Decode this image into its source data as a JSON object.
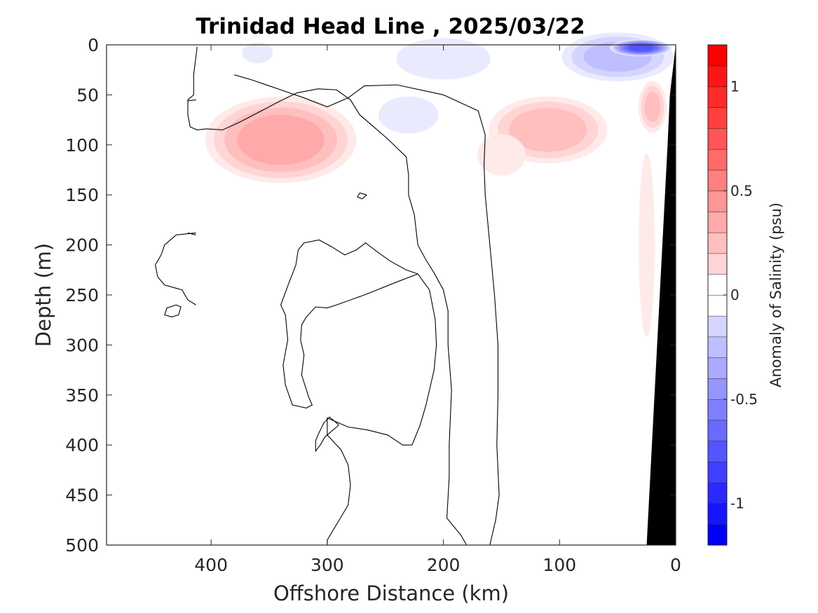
{
  "chart_data": {
    "type": "heatmap",
    "title": "Trinidad Head Line , 2025/03/22",
    "xlabel": "Offshore Distance (km)",
    "ylabel": "Depth (m)",
    "colorbar_label": "Anomaly of Salinity (psu)",
    "xlim": [
      490,
      0
    ],
    "ylim": [
      0,
      500
    ],
    "x_ticks": [
      {
        "value": 400,
        "label": "400"
      },
      {
        "value": 300,
        "label": "300"
      },
      {
        "value": 200,
        "label": "200"
      },
      {
        "value": 100,
        "label": "100"
      },
      {
        "value": 0,
        "label": "0"
      }
    ],
    "y_ticks": [
      {
        "value": 0,
        "label": "0"
      },
      {
        "value": 50,
        "label": "50"
      },
      {
        "value": 100,
        "label": "100"
      },
      {
        "value": 150,
        "label": "150"
      },
      {
        "value": 200,
        "label": "200"
      },
      {
        "value": 250,
        "label": "250"
      },
      {
        "value": 300,
        "label": "300"
      },
      {
        "value": 350,
        "label": "350"
      },
      {
        "value": 400,
        "label": "400"
      },
      {
        "value": 450,
        "label": "450"
      },
      {
        "value": 500,
        "label": "500"
      }
    ],
    "colorbar": {
      "range": [
        -1.2,
        1.2
      ],
      "step": 0.1,
      "colors": {
        "negative_max": "#0000ff",
        "zero": "#ffffff",
        "positive_max": "#ff0000"
      },
      "ticks": [
        {
          "value": 1,
          "label": "1"
        },
        {
          "value": 0.5,
          "label": "0.5"
        },
        {
          "value": 0,
          "label": "0"
        },
        {
          "value": -0.5,
          "label": "-0.5"
        },
        {
          "value": -1,
          "label": "-1"
        }
      ]
    },
    "blobs": [
      {
        "x": 340,
        "y": 95,
        "rx": 72,
        "ry": 48,
        "value": 0.45
      },
      {
        "x": 110,
        "y": 85,
        "rx": 58,
        "ry": 38,
        "value": 0.35
      },
      {
        "x": 150,
        "y": 110,
        "rx": 28,
        "ry": 28,
        "value": 0.12
      },
      {
        "x": 20,
        "y": 62,
        "rx": 14,
        "ry": 30,
        "value": 0.3
      },
      {
        "x": 25,
        "y": 200,
        "rx": 9,
        "ry": 120,
        "value": 0.14
      },
      {
        "x": 50,
        "y": 12,
        "rx": 55,
        "ry": 28,
        "value": -0.32
      },
      {
        "x": 30,
        "y": 3,
        "rx": 28,
        "ry": 9,
        "value": -0.85
      },
      {
        "x": 200,
        "y": 14,
        "rx": 55,
        "ry": 28,
        "value": -0.12
      },
      {
        "x": 230,
        "y": 70,
        "rx": 35,
        "ry": 25,
        "value": -0.12
      },
      {
        "x": 360,
        "y": 8,
        "rx": 18,
        "ry": 14,
        "value": -0.12
      }
    ],
    "zero_contours": [
      [
        [
          412,
          2
        ],
        [
          415,
          30
        ],
        [
          415,
          50
        ],
        [
          420,
          55
        ],
        [
          420,
          70
        ],
        [
          418,
          82
        ],
        [
          412,
          85
        ],
        [
          404,
          84
        ],
        [
          390,
          85
        ],
        [
          375,
          77
        ],
        [
          360,
          68
        ],
        [
          342,
          57
        ],
        [
          326,
          48
        ],
        [
          308,
          44
        ],
        [
          292,
          45
        ],
        [
          280,
          55
        ],
        [
          272,
          70
        ],
        [
          260,
          82
        ],
        [
          248,
          94
        ],
        [
          240,
          103
        ],
        [
          232,
          112
        ],
        [
          230,
          130
        ],
        [
          230,
          150
        ],
        [
          225,
          170
        ],
        [
          222,
          200
        ],
        [
          215,
          215
        ],
        [
          208,
          228
        ],
        [
          200,
          245
        ],
        [
          196,
          266
        ],
        [
          196,
          300
        ],
        [
          193,
          345
        ],
        [
          195,
          400
        ],
        [
          195,
          432
        ],
        [
          197,
          473
        ],
        [
          185,
          490
        ],
        [
          180,
          500
        ]
      ],
      [
        [
          160,
          500
        ],
        [
          155,
          475
        ],
        [
          152,
          450
        ],
        [
          154,
          400
        ],
        [
          153,
          350
        ],
        [
          153,
          300
        ],
        [
          156,
          250
        ],
        [
          160,
          200
        ],
        [
          164,
          150
        ],
        [
          165,
          120
        ],
        [
          164,
          90
        ],
        [
          170,
          66
        ],
        [
          200,
          50
        ],
        [
          240,
          40
        ],
        [
          268,
          41
        ],
        [
          282,
          53
        ],
        [
          300,
          62
        ],
        [
          320,
          53
        ],
        [
          340,
          45
        ],
        [
          365,
          35
        ],
        [
          380,
          30
        ]
      ],
      [
        [
          420,
          56
        ],
        [
          413,
          55
        ]
      ],
      [
        [
          413,
          190
        ],
        [
          420,
          188
        ]
      ],
      [
        [
          413,
          260
        ],
        [
          420,
          255
        ],
        [
          425,
          245
        ],
        [
          440,
          240
        ],
        [
          446,
          232
        ],
        [
          448,
          220
        ],
        [
          443,
          210
        ],
        [
          440,
          200
        ],
        [
          430,
          190
        ],
        [
          413,
          188
        ]
      ],
      [
        [
          430,
          260
        ],
        [
          438,
          263
        ],
        [
          440,
          270
        ],
        [
          434,
          272
        ],
        [
          428,
          270
        ],
        [
          426,
          262
        ],
        [
          430,
          260
        ]
      ],
      [
        [
          266,
          150
        ],
        [
          272,
          148
        ],
        [
          274,
          152
        ],
        [
          270,
          154
        ],
        [
          266,
          150
        ]
      ],
      [
        [
          222,
          229
        ],
        [
          240,
          237
        ],
        [
          268,
          250
        ],
        [
          280,
          255
        ],
        [
          292,
          260
        ],
        [
          300,
          263
        ],
        [
          310,
          262
        ],
        [
          318,
          272
        ],
        [
          322,
          280
        ],
        [
          323,
          295
        ],
        [
          320,
          310
        ],
        [
          322,
          330
        ],
        [
          316,
          352
        ],
        [
          313,
          360
        ],
        [
          318,
          363
        ],
        [
          330,
          360
        ],
        [
          336,
          340
        ],
        [
          338,
          320
        ],
        [
          334,
          295
        ],
        [
          336,
          270
        ],
        [
          340,
          260
        ],
        [
          333,
          238
        ],
        [
          327,
          220
        ],
        [
          325,
          205
        ],
        [
          320,
          198
        ],
        [
          307,
          195
        ],
        [
          296,
          202
        ],
        [
          285,
          210
        ],
        [
          275,
          205
        ],
        [
          267,
          198
        ],
        [
          258,
          206
        ],
        [
          246,
          216
        ],
        [
          232,
          225
        ],
        [
          222,
          229
        ]
      ],
      [
        [
          227,
          400
        ],
        [
          220,
          380
        ],
        [
          215,
          360
        ],
        [
          208,
          325
        ],
        [
          206,
          300
        ],
        [
          207,
          275
        ],
        [
          212,
          245
        ],
        [
          222,
          229
        ]
      ],
      [
        [
          227,
          400
        ],
        [
          235,
          400
        ],
        [
          248,
          390
        ],
        [
          265,
          385
        ],
        [
          282,
          382
        ],
        [
          296,
          375
        ],
        [
          300,
          373
        ],
        [
          300,
          390
        ],
        [
          288,
          405
        ],
        [
          282,
          420
        ],
        [
          280,
          440
        ],
        [
          282,
          460
        ],
        [
          300,
          495
        ],
        [
          300,
          500
        ]
      ],
      [
        [
          290,
          380
        ],
        [
          296,
          386
        ],
        [
          302,
          392
        ],
        [
          306,
          400
        ],
        [
          310,
          406
        ],
        [
          310,
          396
        ],
        [
          308,
          390
        ],
        [
          303,
          378
        ],
        [
          298,
          372
        ],
        [
          290,
          380
        ]
      ]
    ],
    "land_polygon": [
      [
        0,
        0
      ],
      [
        0,
        500
      ],
      [
        25,
        500
      ],
      [
        7,
        100
      ],
      [
        5,
        50
      ],
      [
        0,
        0
      ]
    ]
  }
}
